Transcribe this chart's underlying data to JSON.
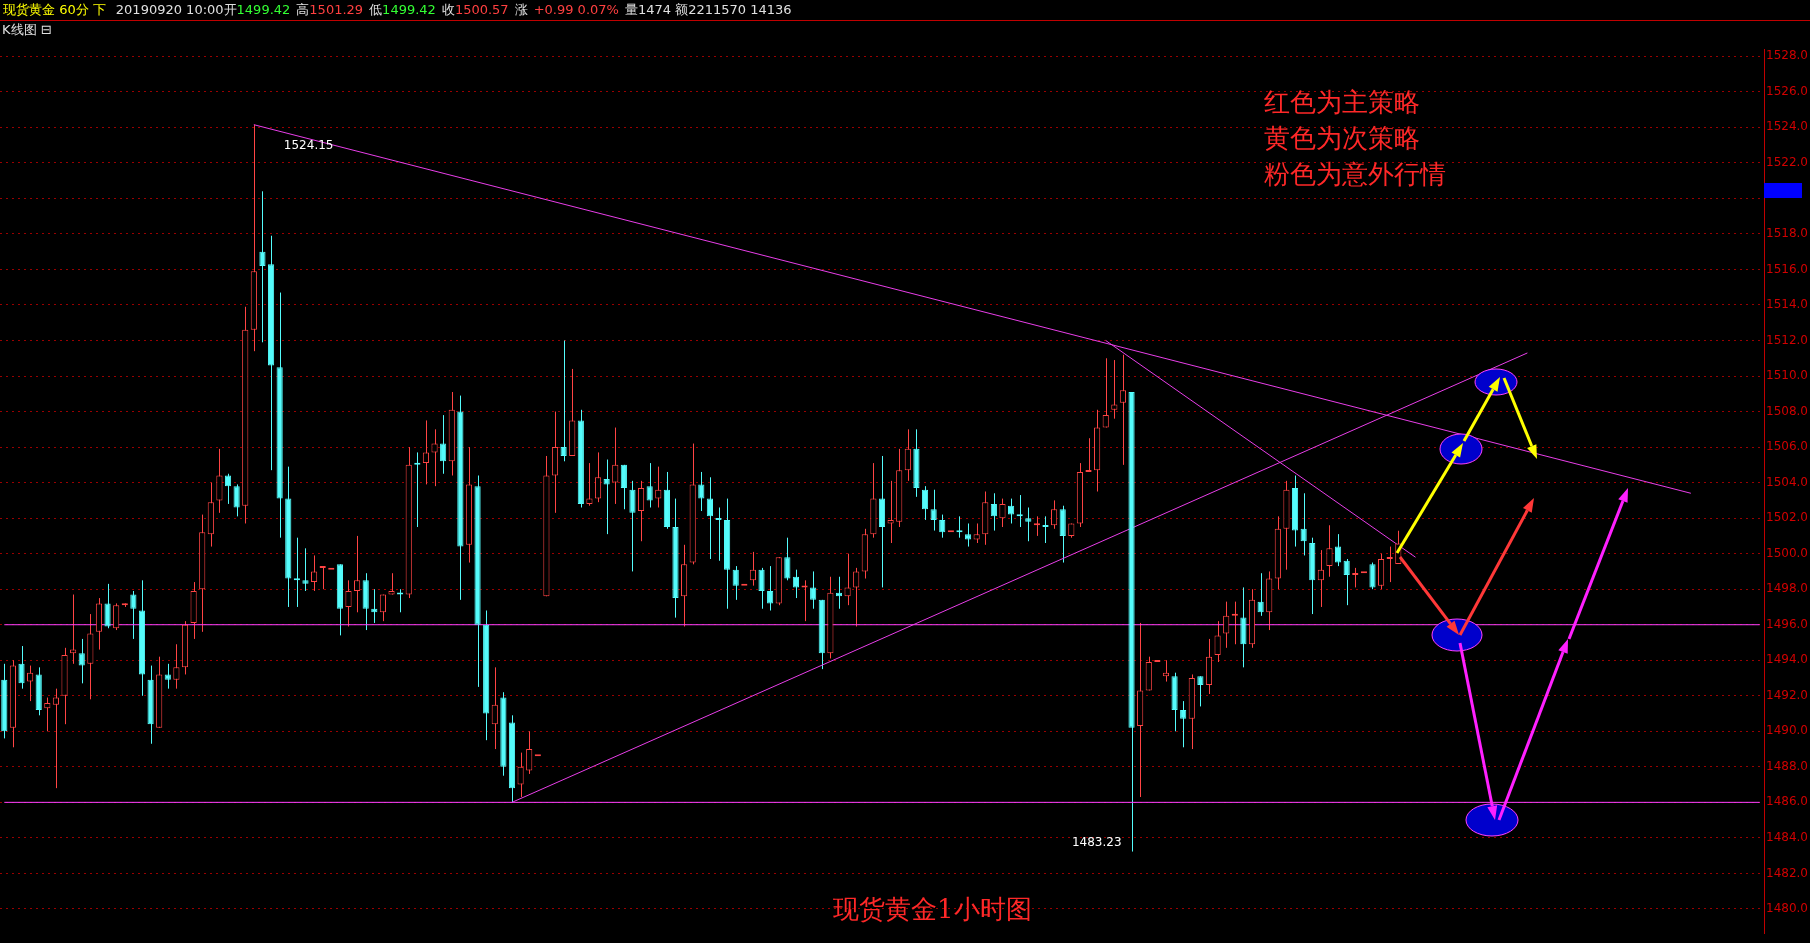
{
  "chart_data": {
    "type": "candlestick",
    "title": "现货黄金 60分 下",
    "annotations": [
      "20190920 10:00开",
      "1499.42",
      "高",
      "1501.29",
      "低",
      "1499.42",
      "收",
      "1500.57",
      "涨",
      "+0.99 0.07%",
      "量1474 额2211570 14136",
      "K线图 ⊟",
      "红色为主策略",
      "黄色为次策略",
      "粉色为意外行情",
      "现货黄金1小时图",
      "1524.15",
      "1483.23"
    ],
    "categories": [
      null,
      null,
      null,
      null,
      null,
      null,
      null,
      null,
      null,
      null,
      null,
      null,
      null,
      null,
      null,
      null,
      null,
      null,
      null,
      null,
      null,
      null,
      null,
      null,
      null,
      null,
      null,
      null,
      null,
      null,
      null,
      null,
      null,
      null,
      null,
      null,
      null,
      null,
      null,
      null,
      null,
      null,
      null,
      null,
      null,
      null,
      null,
      null,
      null,
      null,
      null,
      null,
      null,
      null,
      null,
      null,
      null,
      null,
      null,
      null,
      null,
      null,
      null,
      null,
      null,
      null,
      null,
      null,
      null,
      null,
      null,
      null,
      null,
      null,
      null,
      null,
      null,
      null,
      null,
      null,
      null,
      null,
      null,
      null,
      null,
      null,
      null,
      null,
      null,
      null,
      null,
      null,
      null,
      null,
      null,
      null,
      null,
      null,
      null,
      null,
      null,
      null,
      null,
      null,
      null,
      null,
      null,
      null,
      null,
      null,
      null,
      null,
      null,
      null,
      null,
      null,
      null,
      null,
      null,
      null,
      null,
      null,
      null,
      null,
      null,
      null,
      null,
      null,
      null,
      null,
      null,
      null,
      null,
      null,
      null,
      null,
      null,
      null,
      null,
      null,
      null,
      null,
      null,
      null,
      null,
      null,
      null,
      null,
      null,
      null,
      null,
      null,
      null,
      null,
      null,
      null,
      null,
      null,
      null,
      null,
      null,
      null,
      null,
      null,
      null,
      null,
      null,
      null,
      null,
      null,
      null,
      null,
      null,
      null,
      null,
      null,
      null,
      null,
      null,
      null,
      null,
      null,
      null,
      null,
      null,
      null,
      null,
      null,
      null,
      null,
      null,
      null,
      null,
      null,
      null,
      null,
      null,
      null,
      null,
      null,
      null,
      null,
      null,
      null,
      null
    ],
    "ohlc": [
      [
        1492.9,
        1493.8,
        1489.6,
        1490.0
      ],
      [
        1490.2,
        1494.0,
        1489.1,
        1493.7
      ],
      [
        1493.8,
        1494.8,
        1492.4,
        1492.7
      ],
      [
        1492.8,
        1493.7,
        1491.7,
        1493.3
      ],
      [
        1493.2,
        1493.6,
        1490.9,
        1491.2
      ],
      [
        1491.3,
        1491.9,
        1490.0,
        1491.6
      ],
      [
        1491.5,
        1492.4,
        1486.8,
        1491.9
      ],
      [
        1492.0,
        1494.7,
        1490.4,
        1494.3
      ],
      [
        1494.4,
        1497.7,
        1493.8,
        1494.6
      ],
      [
        1494.4,
        1495.2,
        1492.7,
        1493.7
      ],
      [
        1493.8,
        1496.6,
        1491.8,
        1495.5
      ],
      [
        1495.6,
        1497.5,
        1494.6,
        1497.2
      ],
      [
        1497.2,
        1498.3,
        1495.8,
        1495.9
      ],
      [
        1495.8,
        1497.2,
        1495.7,
        1497.1
      ],
      [
        1497.1,
        1497.2,
        1497.0,
        1497.1
      ],
      [
        1497.7,
        1497.9,
        1495.2,
        1496.9
      ],
      [
        1496.8,
        1498.5,
        1492.0,
        1493.2
      ],
      [
        1492.9,
        1493.7,
        1489.3,
        1490.4
      ],
      [
        1490.2,
        1494.2,
        1490.2,
        1493.2
      ],
      [
        1493.2,
        1493.8,
        1492.4,
        1492.9
      ],
      [
        1492.9,
        1494.9,
        1492.4,
        1493.6
      ],
      [
        1493.6,
        1496.2,
        1493.2,
        1496.0
      ],
      [
        1496.1,
        1498.4,
        1495.2,
        1497.9
      ],
      [
        1498.0,
        1502.2,
        1495.6,
        1501.2
      ],
      [
        1501.1,
        1504.0,
        1500.4,
        1502.9
      ],
      [
        1503.0,
        1505.9,
        1502.3,
        1504.4
      ],
      [
        1504.4,
        1504.5,
        1502.8,
        1503.8
      ],
      [
        1503.8,
        1503.9,
        1502.1,
        1502.6
      ],
      [
        1502.7,
        1513.9,
        1501.7,
        1512.6
      ],
      [
        1512.6,
        1524.15,
        1511.4,
        1515.9
      ],
      [
        1517.0,
        1520.4,
        1511.9,
        1516.2
      ],
      [
        1516.3,
        1517.9,
        1504.7,
        1510.6
      ],
      [
        1510.5,
        1514.7,
        1500.9,
        1503.1
      ],
      [
        1503.1,
        1504.9,
        1497.0,
        1498.6
      ],
      [
        1498.6,
        1500.9,
        1497.0,
        1498.5
      ],
      [
        1498.5,
        1500.3,
        1497.9,
        1498.3
      ],
      [
        1498.4,
        1499.9,
        1497.9,
        1499.0
      ],
      [
        1499.2,
        1499.2,
        1498.0,
        1499.2
      ],
      [
        1499.1,
        1499.1,
        1499.1,
        1499.1
      ],
      [
        1499.4,
        1499.4,
        1495.4,
        1496.9
      ],
      [
        1497.0,
        1498.5,
        1495.9,
        1497.9
      ],
      [
        1497.9,
        1501.0,
        1496.7,
        1498.5
      ],
      [
        1498.5,
        1498.9,
        1495.7,
        1496.9
      ],
      [
        1496.9,
        1498.0,
        1496.1,
        1496.7
      ],
      [
        1496.7,
        1497.7,
        1496.2,
        1497.7
      ],
      [
        1497.7,
        1498.9,
        1497.7,
        1497.9
      ],
      [
        1497.8,
        1498.0,
        1496.7,
        1497.7
      ],
      [
        1497.7,
        1506.0,
        1497.5,
        1505.0
      ],
      [
        1505.1,
        1505.7,
        1501.5,
        1505.0
      ],
      [
        1505.1,
        1507.5,
        1503.9,
        1505.7
      ],
      [
        1505.7,
        1507.0,
        1503.8,
        1506.2
      ],
      [
        1506.2,
        1507.8,
        1504.5,
        1505.2
      ],
      [
        1505.2,
        1509.1,
        1504.4,
        1508.1
      ],
      [
        1508.0,
        1508.9,
        1497.4,
        1500.4
      ],
      [
        1500.5,
        1506.0,
        1499.5,
        1503.9
      ],
      [
        1503.8,
        1504.4,
        1492.5,
        1496.0
      ],
      [
        1496.0,
        1496.8,
        1489.5,
        1491.0
      ],
      [
        1490.4,
        1493.6,
        1489.0,
        1491.5
      ],
      [
        1491.9,
        1492.2,
        1487.5,
        1488.0
      ],
      [
        1490.5,
        1490.9,
        1486.0,
        1486.8
      ],
      [
        1487.0,
        1488.8,
        1486.3,
        1488.0
      ],
      [
        1487.8,
        1490.0,
        1487.6,
        1489.0
      ],
      [
        1488.6,
        1488.6,
        1488.6,
        1488.6
      ],
      [
        1497.6,
        1505.5,
        1497.6,
        1504.4
      ],
      [
        1504.4,
        1508.0,
        1502.3,
        1506.0
      ],
      [
        1506.0,
        1512.0,
        1505.2,
        1505.5
      ],
      [
        1505.5,
        1510.4,
        1505.5,
        1507.5
      ],
      [
        1507.5,
        1508.1,
        1502.6,
        1502.8
      ],
      [
        1502.8,
        1505.1,
        1502.7,
        1503.1
      ],
      [
        1503.1,
        1505.7,
        1502.9,
        1504.3
      ],
      [
        1504.2,
        1505.3,
        1501.1,
        1503.9
      ],
      [
        1504.0,
        1507.1,
        1502.8,
        1505.0
      ],
      [
        1505.0,
        1505.0,
        1502.5,
        1503.7
      ],
      [
        1503.6,
        1504.1,
        1499.0,
        1502.3
      ],
      [
        1502.4,
        1504.1,
        1500.7,
        1503.7
      ],
      [
        1503.8,
        1505.1,
        1502.6,
        1503.0
      ],
      [
        1503.1,
        1504.9,
        1502.6,
        1503.6
      ],
      [
        1503.6,
        1504.6,
        1501.4,
        1501.5
      ],
      [
        1501.5,
        1503.1,
        1496.4,
        1497.5
      ],
      [
        1497.6,
        1500.5,
        1495.9,
        1499.4
      ],
      [
        1499.5,
        1506.2,
        1499.4,
        1503.9
      ],
      [
        1503.9,
        1504.6,
        1502.4,
        1503.1
      ],
      [
        1503.1,
        1504.3,
        1499.7,
        1502.1
      ],
      [
        1502.0,
        1502.6,
        1499.6,
        1501.9
      ],
      [
        1501.9,
        1503.1,
        1496.9,
        1499.1
      ],
      [
        1499.1,
        1499.3,
        1497.4,
        1498.2
      ],
      [
        1498.2,
        1498.2,
        1498.2,
        1498.2
      ],
      [
        1498.5,
        1500.1,
        1498.2,
        1499.1
      ],
      [
        1499.1,
        1499.2,
        1496.9,
        1497.9
      ],
      [
        1497.9,
        1499.3,
        1496.8,
        1497.2
      ],
      [
        1497.2,
        1499.8,
        1497.1,
        1499.8
      ],
      [
        1499.8,
        1500.9,
        1498.5,
        1498.6
      ],
      [
        1498.7,
        1499.1,
        1497.5,
        1498.1
      ],
      [
        1498.1,
        1498.5,
        1496.2,
        1498.2
      ],
      [
        1498.1,
        1499.0,
        1496.9,
        1497.4
      ],
      [
        1497.4,
        1497.4,
        1493.5,
        1494.4
      ],
      [
        1494.4,
        1498.7,
        1494.1,
        1497.8
      ],
      [
        1497.8,
        1498.7,
        1496.9,
        1497.6
      ],
      [
        1497.6,
        1500.0,
        1497.1,
        1498.1
      ],
      [
        1498.1,
        1499.2,
        1495.9,
        1499.0
      ],
      [
        1499.0,
        1501.4,
        1498.6,
        1501.1
      ],
      [
        1501.1,
        1505.1,
        1500.9,
        1503.1
      ],
      [
        1503.1,
        1505.5,
        1498.1,
        1501.5
      ],
      [
        1501.7,
        1504.1,
        1500.6,
        1501.9
      ],
      [
        1501.8,
        1505.9,
        1501.5,
        1504.7
      ],
      [
        1504.7,
        1507.0,
        1504.1,
        1505.9
      ],
      [
        1505.9,
        1507.0,
        1503.2,
        1503.7
      ],
      [
        1503.6,
        1503.8,
        1501.9,
        1502.5
      ],
      [
        1502.5,
        1503.6,
        1501.3,
        1501.9
      ],
      [
        1501.9,
        1502.2,
        1500.9,
        1501.2
      ],
      [
        1501.2,
        1501.2,
        1501.2,
        1501.2
      ],
      [
        1501.3,
        1502.1,
        1500.9,
        1501.2
      ],
      [
        1501.1,
        1501.7,
        1500.4,
        1500.8
      ],
      [
        1500.8,
        1501.7,
        1500.6,
        1501.1
      ],
      [
        1501.1,
        1503.5,
        1500.5,
        1502.9
      ],
      [
        1502.8,
        1503.4,
        1501.3,
        1502.1
      ],
      [
        1502.0,
        1503.1,
        1501.5,
        1502.8
      ],
      [
        1502.7,
        1503.1,
        1501.7,
        1502.2
      ],
      [
        1502.2,
        1503.3,
        1501.5,
        1502.1
      ],
      [
        1502.0,
        1502.6,
        1500.7,
        1501.8
      ],
      [
        1501.6,
        1502.1,
        1501.0,
        1501.6
      ],
      [
        1501.6,
        1502.1,
        1500.6,
        1501.5
      ],
      [
        1501.6,
        1503.0,
        1501.4,
        1502.5
      ],
      [
        1502.5,
        1502.7,
        1499.5,
        1501.0
      ],
      [
        1501.0,
        1501.7,
        1500.9,
        1501.7
      ],
      [
        1501.7,
        1505.1,
        1501.5,
        1504.6
      ],
      [
        1504.6,
        1506.5,
        1504.6,
        1504.6
      ],
      [
        1504.7,
        1508.1,
        1503.5,
        1507.1
      ],
      [
        1507.1,
        1511.0,
        1507.1,
        1507.8
      ],
      [
        1508.1,
        1510.9,
        1507.6,
        1508.4
      ],
      [
        1508.5,
        1511.2,
        1505.0,
        1509.2
      ],
      [
        1509.1,
        1509.1,
        1483.23,
        1490.2
      ],
      [
        1490.3,
        1496.1,
        1486.3,
        1492.3
      ],
      [
        1492.3,
        1494.2,
        1492.3,
        1493.9
      ],
      [
        1493.9,
        1493.9,
        1493.9,
        1493.9
      ],
      [
        1493.1,
        1494.0,
        1492.8,
        1493.3
      ],
      [
        1493.1,
        1493.3,
        1490.0,
        1491.2
      ],
      [
        1491.2,
        1491.7,
        1489.1,
        1490.7
      ],
      [
        1490.7,
        1493.2,
        1489.0,
        1493.0
      ],
      [
        1493.1,
        1493.1,
        1491.4,
        1492.6
      ],
      [
        1492.6,
        1495.2,
        1492.1,
        1494.2
      ],
      [
        1494.3,
        1496.2,
        1493.9,
        1495.4
      ],
      [
        1495.5,
        1497.3,
        1494.7,
        1496.5
      ],
      [
        1496.5,
        1497.3,
        1494.9,
        1496.5
      ],
      [
        1496.4,
        1498.1,
        1493.6,
        1494.9
      ],
      [
        1494.9,
        1498.0,
        1494.7,
        1497.4
      ],
      [
        1497.3,
        1498.9,
        1496.5,
        1496.7
      ],
      [
        1496.7,
        1499.0,
        1495.7,
        1498.6
      ],
      [
        1498.6,
        1502.1,
        1498.0,
        1501.4
      ],
      [
        1501.4,
        1504.1,
        1499.1,
        1503.6
      ],
      [
        1503.7,
        1504.4,
        1500.4,
        1501.3
      ],
      [
        1501.4,
        1503.4,
        1499.9,
        1500.7
      ],
      [
        1500.6,
        1500.9,
        1496.6,
        1498.5
      ],
      [
        1498.5,
        1500.2,
        1497.0,
        1499.1
      ],
      [
        1499.3,
        1501.6,
        1498.7,
        1500.3
      ],
      [
        1500.4,
        1501.1,
        1499.3,
        1499.5
      ],
      [
        1499.6,
        1499.7,
        1497.1,
        1498.8
      ],
      [
        1498.8,
        1499.2,
        1498.1,
        1498.8
      ],
      [
        1498.9,
        1498.9,
        1498.9,
        1498.9
      ],
      [
        1499.4,
        1499.5,
        1498.0,
        1498.1
      ],
      [
        1498.2,
        1500.0,
        1498.0,
        1499.7
      ],
      [
        1499.7,
        1500.4,
        1498.4,
        1499.7
      ],
      [
        1499.42,
        1501.29,
        1499.42,
        1500.57
      ],
      null,
      null,
      null,
      null,
      null,
      null,
      null,
      null,
      null,
      null,
      null,
      null,
      null,
      null,
      null,
      null,
      null,
      null,
      null,
      null,
      null,
      null,
      null,
      null,
      null,
      null,
      null,
      null,
      null,
      null,
      null,
      null,
      null,
      null,
      null,
      null,
      null,
      null,
      null,
      null,
      null,
      null
    ],
    "series": [
      {
        "type": "line",
        "color": "#e83ee8",
        "values": [
          null,
          null,
          null,
          null,
          null,
          null,
          null,
          null,
          null,
          null,
          null,
          null,
          null,
          null,
          null,
          null,
          null,
          null,
          null,
          null,
          null,
          null,
          null,
          null,
          null,
          null,
          null,
          null,
          null,
          1524.15,
          null,
          null,
          null,
          null,
          null,
          null,
          null,
          null,
          null,
          null,
          null,
          null,
          null,
          null,
          null,
          null,
          null,
          null,
          null,
          null,
          null,
          null,
          null,
          null,
          null,
          null,
          null,
          null,
          null,
          null,
          null,
          null,
          null,
          null,
          null,
          null,
          null,
          null,
          null,
          null,
          null,
          null,
          null,
          null,
          null,
          null,
          null,
          null,
          null,
          null,
          null,
          null,
          null,
          null,
          null,
          null,
          null,
          null,
          null,
          null,
          null,
          null,
          null,
          null,
          null,
          null,
          null,
          null,
          null,
          null,
          null,
          null,
          null,
          null,
          null,
          null,
          null,
          null,
          null,
          null,
          null,
          null,
          null,
          null,
          null,
          null,
          null,
          null,
          null,
          null,
          null,
          null,
          null,
          null,
          null,
          null,
          null,
          null,
          null,
          null,
          null,
          null,
          null,
          null,
          null,
          null,
          null,
          null,
          null,
          null,
          null,
          null,
          null,
          null,
          null,
          null,
          null,
          null,
          null,
          null,
          null,
          null,
          null,
          null,
          null,
          null,
          null,
          null,
          null,
          null,
          null,
          null,
          null,
          null,
          null,
          null,
          null,
          null,
          null,
          null,
          null,
          null,
          null,
          null,
          null,
          null,
          null,
          null,
          null,
          null,
          null,
          null,
          null,
          null,
          null,
          null,
          null,
          null,
          null,
          null,
          null,
          null,
          null,
          null,
          null,
          null,
          1503.4,
          null,
          null,
          null,
          null,
          null,
          null,
          null,
          null
        ]
      },
      {
        "type": "line",
        "color": "#e83ee8",
        "values": [
          null,
          null,
          null,
          null,
          null,
          null,
          null,
          null,
          null,
          null,
          null,
          null,
          null,
          null,
          null,
          null,
          null,
          null,
          null,
          null,
          null,
          null,
          null,
          null,
          null,
          null,
          null,
          null,
          null,
          null,
          null,
          null,
          null,
          null,
          null,
          null,
          null,
          null,
          null,
          null,
          null,
          null,
          null,
          null,
          null,
          null,
          null,
          null,
          null,
          null,
          null,
          null,
          null,
          null,
          null,
          null,
          null,
          null,
          null,
          1486.0,
          null,
          null,
          null,
          null,
          null,
          null,
          null,
          null,
          null,
          null,
          null,
          null,
          null,
          null,
          null,
          null,
          null,
          null,
          null,
          null,
          null,
          null,
          null,
          null,
          null,
          null,
          null,
          null,
          null,
          null,
          null,
          null,
          null,
          null,
          null,
          null,
          null,
          null,
          null,
          null,
          null,
          null,
          null,
          null,
          null,
          null,
          null,
          null,
          null,
          null,
          null,
          null,
          null,
          null,
          null,
          null,
          null,
          null,
          null,
          null,
          null,
          null,
          null,
          null,
          null,
          null,
          null,
          null,
          null,
          null,
          null,
          null,
          null,
          null,
          null,
          null,
          null,
          null,
          null,
          null,
          null,
          null,
          null,
          null,
          null,
          null,
          null,
          null,
          null,
          null,
          null,
          null,
          null,
          null,
          null,
          null,
          null,
          null,
          null,
          null,
          null,
          null,
          null,
          null,
          null,
          null,
          null,
          null,
          null,
          null,
          null,
          null,
          null,
          null,
          null,
          null,
          null,
          1511.3,
          null,
          null,
          null,
          null,
          null,
          null,
          null,
          null,
          null,
          null,
          null,
          null,
          null,
          null,
          null,
          null,
          null,
          null,
          null,
          null,
          null,
          null,
          null,
          null,
          null,
          null,
          null
        ]
      },
      {
        "type": "line",
        "color": "#e83ee8",
        "values": [
          null,
          null,
          null,
          null,
          null,
          null,
          null,
          null,
          null,
          null,
          null,
          null,
          null,
          null,
          null,
          null,
          null,
          null,
          null,
          null,
          null,
          null,
          null,
          null,
          null,
          null,
          null,
          null,
          null,
          null,
          null,
          null,
          null,
          null,
          null,
          null,
          null,
          null,
          null,
          null,
          null,
          null,
          null,
          null,
          null,
          null,
          null,
          null,
          null,
          null,
          null,
          null,
          null,
          null,
          null,
          null,
          null,
          null,
          null,
          null,
          null,
          null,
          null,
          null,
          null,
          null,
          null,
          null,
          null,
          null,
          null,
          null,
          null,
          null,
          null,
          null,
          null,
          null,
          null,
          null,
          null,
          null,
          null,
          null,
          null,
          null,
          null,
          null,
          null,
          null,
          null,
          null,
          null,
          null,
          null,
          null,
          null,
          null,
          null,
          null,
          null,
          null,
          null,
          null,
          null,
          null,
          null,
          null,
          null,
          null,
          null,
          null,
          null,
          null,
          null,
          null,
          null,
          null,
          null,
          null,
          null,
          null,
          null,
          null,
          null,
          null,
          null,
          null,
          1512.0,
          null,
          null,
          null,
          null,
          null,
          null,
          null,
          null,
          null,
          null,
          null,
          null,
          null,
          null,
          null,
          null,
          null,
          null,
          null,
          null,
          null,
          null,
          null,
          null,
          null,
          null,
          null,
          null,
          null,
          null,
          null,
          null,
          null,
          null,
          null,
          1499.8,
          null,
          null,
          null,
          null,
          null,
          null,
          null,
          null,
          null,
          null,
          null,
          null,
          null,
          null,
          null,
          null,
          null,
          null,
          null,
          null,
          null,
          null,
          null,
          null,
          null,
          null,
          null,
          null,
          null,
          null,
          null,
          null,
          null,
          null,
          null,
          null,
          null,
          null,
          null,
          null
        ]
      },
      {
        "type": "line",
        "color": "#ff40ff",
        "values": [
          1496,
          null,
          null,
          null,
          null,
          null,
          null,
          null,
          null,
          null,
          null,
          null,
          null,
          null,
          null,
          null,
          null,
          null,
          null,
          null,
          null,
          null,
          null,
          null,
          null,
          null,
          null,
          null,
          null,
          null,
          null,
          null,
          null,
          null,
          null,
          null,
          null,
          null,
          null,
          null,
          null,
          null,
          null,
          null,
          null,
          null,
          null,
          null,
          null,
          null,
          null,
          null,
          null,
          null,
          null,
          null,
          null,
          null,
          null,
          null,
          null,
          null,
          null,
          null,
          null,
          null,
          null,
          null,
          null,
          null,
          null,
          null,
          null,
          null,
          null,
          null,
          null,
          null,
          null,
          null,
          null,
          null,
          null,
          null,
          null,
          null,
          null,
          null,
          null,
          null,
          null,
          null,
          null,
          null,
          null,
          null,
          null,
          null,
          null,
          null,
          null,
          null,
          null,
          null,
          null,
          null,
          null,
          null,
          null,
          null,
          null,
          null,
          null,
          null,
          null,
          null,
          null,
          null,
          null,
          null,
          null,
          null,
          null,
          null,
          null,
          null,
          null,
          null,
          null,
          null,
          null,
          null,
          null,
          null,
          null,
          null,
          null,
          null,
          null,
          null,
          null,
          null,
          null,
          null,
          null,
          null,
          null,
          null,
          null,
          null,
          null,
          null,
          null,
          null,
          null,
          null,
          null,
          null,
          null,
          null,
          null,
          null,
          null,
          null,
          null,
          null,
          null,
          null,
          null,
          null,
          null,
          null,
          null,
          null,
          null,
          null,
          null,
          null,
          null,
          null,
          null,
          null,
          null,
          null,
          null,
          null,
          null,
          null,
          null,
          null,
          null,
          null,
          null,
          null,
          null,
          null,
          null,
          null,
          null,
          null,
          null,
          null,
          null,
          null,
          1496
        ]
      },
      {
        "type": "line",
        "color": "#ff40ff",
        "values": [
          1486,
          null,
          null,
          null,
          null,
          null,
          null,
          null,
          null,
          null,
          null,
          null,
          null,
          null,
          null,
          null,
          null,
          null,
          null,
          null,
          null,
          null,
          null,
          null,
          null,
          null,
          null,
          null,
          null,
          null,
          null,
          null,
          null,
          null,
          null,
          null,
          null,
          null,
          null,
          null,
          null,
          null,
          null,
          null,
          null,
          null,
          null,
          null,
          null,
          null,
          null,
          null,
          null,
          null,
          null,
          null,
          null,
          null,
          null,
          null,
          null,
          null,
          null,
          null,
          null,
          null,
          null,
          null,
          null,
          null,
          null,
          null,
          null,
          null,
          null,
          null,
          null,
          null,
          null,
          null,
          null,
          null,
          null,
          null,
          null,
          null,
          null,
          null,
          null,
          null,
          null,
          null,
          null,
          null,
          null,
          null,
          null,
          null,
          null,
          null,
          null,
          null,
          null,
          null,
          null,
          null,
          null,
          null,
          null,
          null,
          null,
          null,
          null,
          null,
          null,
          null,
          null,
          null,
          null,
          null,
          null,
          null,
          null,
          null,
          null,
          null,
          null,
          null,
          null,
          null,
          null,
          null,
          null,
          null,
          null,
          null,
          null,
          null,
          null,
          null,
          null,
          null,
          null,
          null,
          null,
          null,
          null,
          null,
          null,
          null,
          null,
          null,
          null,
          null,
          null,
          null,
          null,
          null,
          null,
          null,
          null,
          null,
          null,
          null,
          null,
          null,
          null,
          null,
          null,
          null,
          null,
          null,
          null,
          null,
          null,
          null,
          null,
          null,
          null,
          null,
          null,
          null,
          null,
          null,
          null,
          null,
          null,
          null,
          null,
          null,
          null,
          null,
          null,
          null,
          null,
          null,
          null,
          null,
          null,
          null,
          null,
          null,
          null,
          null,
          1486
        ]
      }
    ],
    "ylim": [
      1478.6,
      1528.4
    ],
    "yticks": [
      {
        "value": 1480,
        "label": "1480.0"
      },
      {
        "value": 1482,
        "label": "1482.0"
      },
      {
        "value": 1484,
        "label": "1484.0"
      },
      {
        "value": 1486,
        "label": "1486.0"
      },
      {
        "value": 1488,
        "label": "1488.0"
      },
      {
        "value": 1490,
        "label": "1490.0"
      },
      {
        "value": 1492,
        "label": "1492.0"
      },
      {
        "value": 1494,
        "label": "1494.0"
      },
      {
        "value": 1496,
        "label": "1496.0"
      },
      {
        "value": 1498,
        "label": "1498.0"
      },
      {
        "value": 1500,
        "label": "1500.0"
      },
      {
        "value": 1502,
        "label": "1502.0"
      },
      {
        "value": 1504,
        "label": "1504.0"
      },
      {
        "value": 1506,
        "label": "1506.0"
      },
      {
        "value": 1508,
        "label": "1508.0"
      },
      {
        "value": 1510,
        "label": "1510.0"
      },
      {
        "value": 1512,
        "label": "1512.0"
      },
      {
        "value": 1514,
        "label": "1514.0"
      },
      {
        "value": 1516,
        "label": "1516.0"
      },
      {
        "value": 1518,
        "label": "1518.0"
      },
      {
        "value": 1520,
        "label": null
      },
      {
        "value": 1522,
        "label": "1522.0"
      },
      {
        "value": 1524,
        "label": "1524.0"
      },
      {
        "value": 1526,
        "label": "1526.0"
      },
      {
        "value": 1528,
        "label": "1528.0"
      }
    ],
    "grid": "y",
    "tick_labels": "y"
  }
}
